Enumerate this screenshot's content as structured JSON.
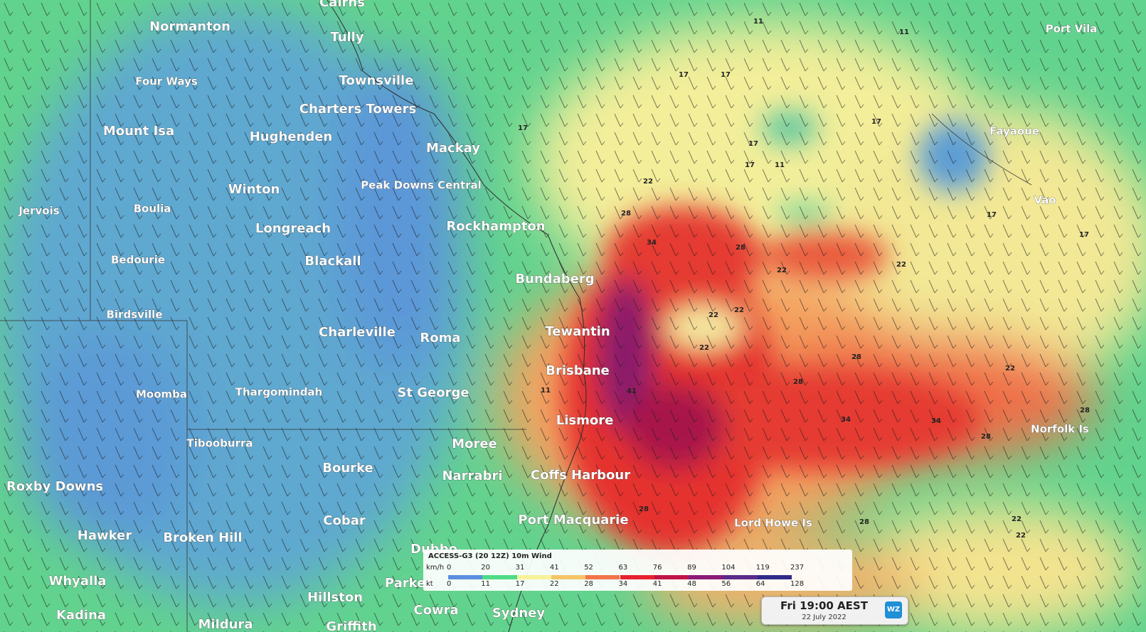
{
  "places": [
    "Cairns",
    "Normanton",
    "Tully",
    "Four Ways",
    "Townsville",
    "Charters Towers",
    "Mount Isa",
    "Hughenden",
    "Mackay",
    "Peak Downs Central",
    "Winton",
    "Jervois",
    "Boulia",
    "Longreach",
    "Rockhampton",
    "Bedourie",
    "Blackall",
    "Bundaberg",
    "Birdsville",
    "Charleville",
    "Roma",
    "Tewantin",
    "Brisbane",
    "Moomba",
    "Thargomindah",
    "St George",
    "Lismore",
    "Tibooburra",
    "Moree",
    "Bourke",
    "Narrabri",
    "Coffs Harbour",
    "Roxby Downs",
    "Cobar",
    "Port Macquarie",
    "Lord Howe Is",
    "Hawker",
    "Broken Hill",
    "Dubbo",
    "Whyalla",
    "Parkes",
    "Hillston",
    "Cowra",
    "Sydney",
    "Kadina",
    "Mildura",
    "Griffith",
    "Port Vila",
    "Fayaoue",
    "Vao",
    "Norfolk Is"
  ],
  "contour_labels": [
    "11",
    "17",
    "17",
    "17",
    "17",
    "22",
    "28",
    "34",
    "28",
    "22",
    "22",
    "22",
    "22",
    "28",
    "28",
    "34",
    "34",
    "28",
    "28",
    "22",
    "22",
    "17",
    "11",
    "11",
    "17",
    "17",
    "22",
    "28",
    "41",
    "11",
    "17",
    "28",
    "22"
  ],
  "legend": {
    "title": "ACCESS-G3 (20 12Z) 10m Wind",
    "kmh_label": "km/h",
    "kmh": [
      "0",
      "20",
      "31",
      "41",
      "52",
      "63",
      "76",
      "89",
      "104",
      "119",
      "237"
    ],
    "kt_label": "kt",
    "kt": [
      "0",
      "11",
      "17",
      "22",
      "28",
      "34",
      "41",
      "48",
      "56",
      "64",
      "128"
    ]
  },
  "timebox": {
    "time": "Fri 19:00 AEST",
    "date": "22 July 2022",
    "logo": "WZ"
  }
}
